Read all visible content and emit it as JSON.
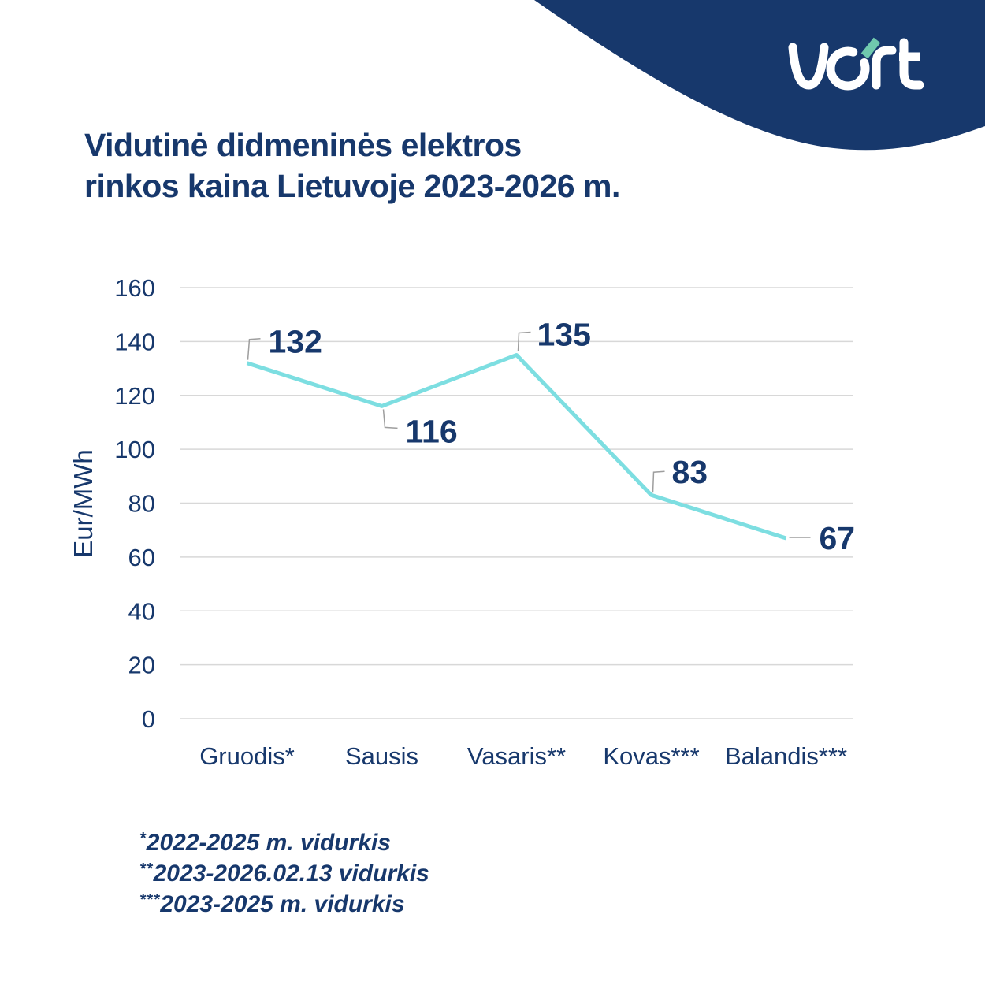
{
  "brand": {
    "logo_text": "vert",
    "navy": "#17386C",
    "teal_accent": "#70C9AE"
  },
  "title": {
    "line1": "Vidutinė didmeninės elektros",
    "line2": "rinkos kaina Lietuvoje 2023-2026 m."
  },
  "chart_data": {
    "type": "line",
    "title": "Vidutinė didmeninės elektros rinkos kaina Lietuvoje 2023-2026 m.",
    "categories": [
      "Gruodis*",
      "Sausis",
      "Vasaris**",
      "Kovas***",
      "Balandis***"
    ],
    "values": [
      132,
      116,
      135,
      83,
      67
    ],
    "xlabel": "",
    "ylabel": "Eur/MWh",
    "ylim": [
      0,
      160
    ],
    "ytick_step": 20,
    "yticks": [
      0,
      20,
      40,
      60,
      80,
      100,
      120,
      140,
      160
    ],
    "grid": true,
    "legend": "none",
    "line_color": "#7DDEE1",
    "gridline_color": "#D8D8D8",
    "leader_line_color": "#9E9E9E",
    "label_color": "#17386C"
  },
  "footnotes": [
    {
      "stars": "*",
      "text": "2022-2025 m. vidurkis"
    },
    {
      "stars": "**",
      "text": "2023-2026.02.13 vidurkis"
    },
    {
      "stars": "***",
      "text": "2023-2025 m. vidurkis"
    }
  ]
}
